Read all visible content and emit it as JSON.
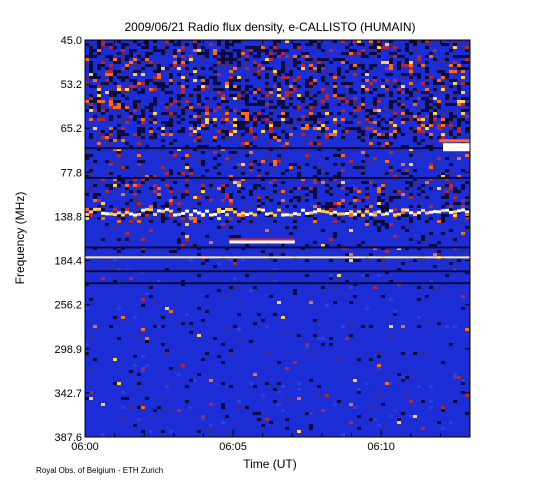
{
  "chart_data": {
    "type": "heatmap",
    "title": "2009/06/21  Radio flux density, e-CALLISTO (HUMAIN)",
    "xlabel": "Time (UT)",
    "ylabel": "Frequency (MHz)",
    "x_range": [
      "06:00",
      "06:13"
    ],
    "y_tick_labels": [
      "45.0",
      "53.2",
      "65.2",
      "77.8",
      "138.8",
      "184.4",
      "256.2",
      "298.9",
      "342.7",
      "387.6"
    ],
    "x_tick_labels": [
      "06:00",
      "06:05",
      "06:10"
    ],
    "colors": {
      "low": "#1c2dd6",
      "mid": "#0a0a40",
      "high": "#ff6a1a",
      "peak": "#ffffff"
    },
    "features": [
      {
        "description_band": "45.0-65.2",
        "intensity": "strong patchy emission"
      },
      {
        "description_band": "138.8",
        "intensity": "bright band"
      },
      {
        "description_band": "184.4",
        "intensity": "bright thin interference line"
      }
    ]
  },
  "footer": {
    "credit": "Royal Obs. of Belgium - ETH Zurich"
  }
}
